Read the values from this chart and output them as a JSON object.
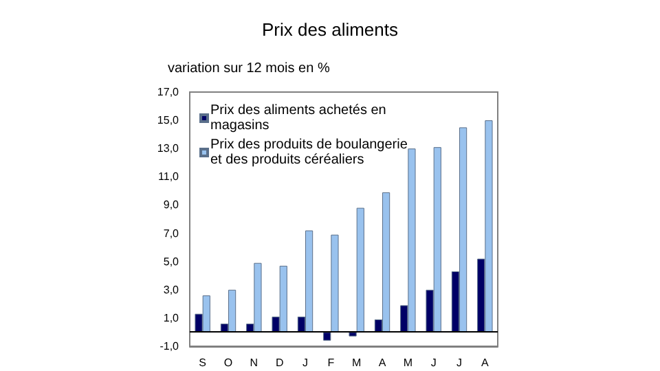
{
  "chart_data": {
    "type": "bar",
    "title": "Prix des aliments",
    "ylabel": "variation sur 12 mois en %",
    "categories": [
      "S",
      "O",
      "N",
      "D",
      "J",
      "F",
      "M",
      "A",
      "M",
      "J",
      "J",
      "A"
    ],
    "series": [
      {
        "name": "Prix des aliments achetés en\nmagasins",
        "color": "#000066",
        "values": [
          1.3,
          0.6,
          0.6,
          1.1,
          1.1,
          -0.6,
          -0.3,
          0.9,
          1.9,
          3.0,
          4.3,
          5.2
        ]
      },
      {
        "name": "Prix des produits de boulangerie\net des produits céréaliers",
        "color": "#99c2ee",
        "values": [
          2.6,
          3.0,
          4.9,
          4.7,
          7.2,
          6.9,
          8.8,
          9.9,
          13.0,
          13.1,
          14.5,
          15.0
        ]
      }
    ],
    "ylim": [
      -1,
      17
    ],
    "yticks": [
      {
        "value": -1,
        "label": "-1,0"
      },
      {
        "value": 1,
        "label": "1,0"
      },
      {
        "value": 3,
        "label": "3,0"
      },
      {
        "value": 5,
        "label": "5,0"
      },
      {
        "value": 7,
        "label": "7,0"
      },
      {
        "value": 9,
        "label": "9,0"
      },
      {
        "value": 11,
        "label": "11,0"
      },
      {
        "value": 13,
        "label": "13,0"
      },
      {
        "value": 15,
        "label": "15,0"
      },
      {
        "value": 17,
        "label": "17,0"
      }
    ],
    "grid": false,
    "legend": "top left"
  }
}
